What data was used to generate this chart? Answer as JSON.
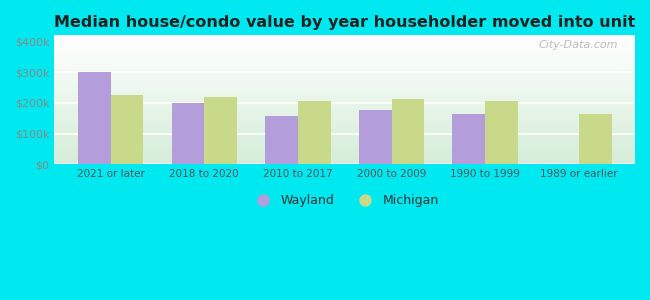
{
  "title": "Median house/condo value by year householder moved into unit",
  "categories": [
    "2021 or later",
    "2018 to 2020",
    "2010 to 2017",
    "2000 to 2009",
    "1990 to 1999",
    "1989 or earlier"
  ],
  "wayland_values": [
    300000,
    200000,
    158000,
    178000,
    163000,
    0
  ],
  "michigan_values": [
    225000,
    218000,
    205000,
    212000,
    207000,
    165000
  ],
  "wayland_color": "#b39ddb",
  "michigan_color": "#c8d98a",
  "background_outer": "#00e8f0",
  "bg_gradient_top": "#ffffff",
  "bg_gradient_bottom": "#d4edda",
  "ylabel_color": "#888888",
  "title_color": "#222222",
  "yticks": [
    0,
    100000,
    200000,
    300000,
    400000
  ],
  "ytick_labels": [
    "$0",
    "$100k",
    "$200k",
    "$300k",
    "$400k"
  ],
  "ylim": [
    0,
    420000
  ],
  "bar_width": 0.35,
  "watermark_text": "City-Data.com",
  "legend_wayland": "Wayland",
  "legend_michigan": "Michigan"
}
